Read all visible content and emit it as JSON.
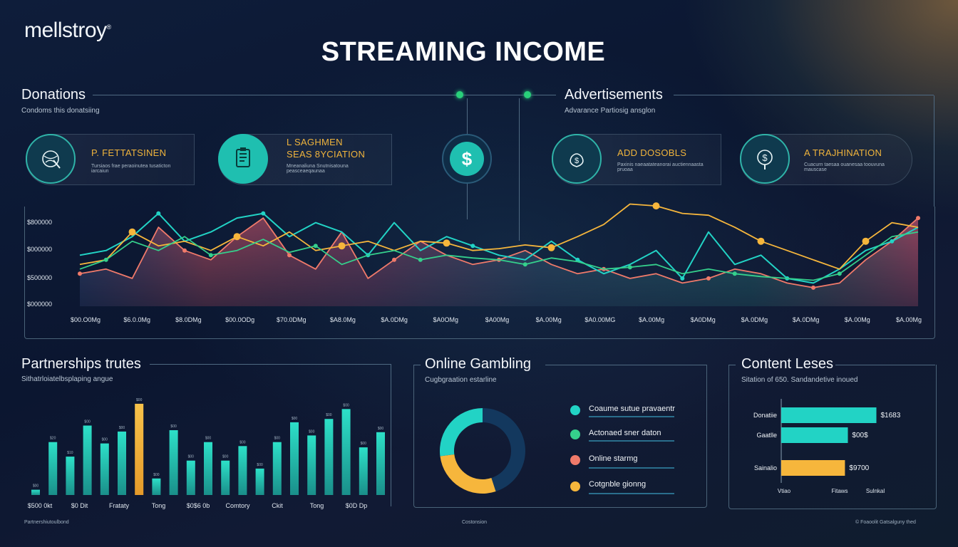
{
  "brand": "mellstroy",
  "brand_mark": "®",
  "title": "STREAMING INCOME",
  "donations": {
    "title": "Donations",
    "subtitle": "Condoms this donatsiing",
    "cards": [
      {
        "label": "P. FETTATSINEN",
        "desc": "Tursiaos frae peraoinutea tusaticton iarcaiun",
        "icon": "globe-pen-icon"
      },
      {
        "label": "L SAGHMEN\nSEAS 8YCIATION",
        "desc": "Mneanaliuna Snutnisatouna peasceaeqaunaa",
        "icon": "document-icon"
      }
    ],
    "center_icon": "dollar-icon"
  },
  "advertisements": {
    "title": "Advertisements",
    "subtitle": "Advarance Partiosig ansglon",
    "cards": [
      {
        "label": "ADD DOSOBLS",
        "desc": "Paxinis naeaatateanorai auctiennaasta pruoaa",
        "icon": "dollar-bag-icon"
      },
      {
        "label": "A TRAJHINATION",
        "desc": "Cuacurn taesaa ouanesaa toouvuna mauscase",
        "icon": "dollar-pin-icon"
      }
    ]
  },
  "partnerships": {
    "title": "Partnerships trutes",
    "subtitle": "Sithatrloiatelbsplaping angue",
    "footer": "Partnershiutoulbond"
  },
  "gambling": {
    "title": "Online Gambling",
    "subtitle": "Cugbgraation estarline",
    "footer": "Costonsion",
    "legend": [
      {
        "label": "Coaume sutue pravaentr",
        "color": "#22d3c5"
      },
      {
        "label": "Actonaed sner daton",
        "color": "#35d08c"
      },
      {
        "label": "Online starmg",
        "color": "#f07a6a"
      },
      {
        "label": "Cotgnble gionng",
        "color": "#f6b63c"
      }
    ]
  },
  "content": {
    "title": "Content Leses",
    "subtitle": "Sitation of 650. Sandandetive inoued",
    "footer": "© Foaoolit Gatsalguny thed"
  },
  "colors": {
    "teal": "#22d3c5",
    "gold": "#f6b63c",
    "coral": "#f07a6a",
    "navy": "#13385e"
  },
  "chart_data": [
    {
      "type": "line",
      "ylabels": [
        "$800000",
        "$000000",
        "$500000",
        "$000000"
      ],
      "xlabels": [
        "$00.O0Mg",
        "$6.0.0Mg",
        "$8.0DMg",
        "$00.0ODg",
        "$70.0DMg",
        "$A8.0Mg",
        "$A.0DMg",
        "$A0OMg",
        "$A00Mg",
        "$A.00Mg",
        "$A0.00MG",
        "$A.00Mg",
        "$A0DMg",
        "$A.0DMg",
        "$A.0DMg",
        "$A.00Mg",
        "$A.00Mg"
      ],
      "series": [
        {
          "color": "#f07a6a",
          "values": [
            0.35,
            0.4,
            0.3,
            0.85,
            0.6,
            0.5,
            0.75,
            0.95,
            0.55,
            0.4,
            0.8,
            0.3,
            0.5,
            0.7,
            0.55,
            0.45,
            0.5,
            0.6,
            0.45,
            0.35,
            0.4,
            0.3,
            0.35,
            0.25,
            0.3,
            0.4,
            0.35,
            0.25,
            0.2,
            0.25,
            0.5,
            0.7,
            0.95
          ]
        },
        {
          "color": "#22d3c5",
          "values": [
            0.55,
            0.6,
            0.75,
            1.0,
            0.7,
            0.8,
            0.95,
            1.0,
            0.75,
            0.9,
            0.8,
            0.55,
            0.9,
            0.6,
            0.75,
            0.65,
            0.55,
            0.5,
            0.7,
            0.5,
            0.35,
            0.45,
            0.6,
            0.3,
            0.8,
            0.45,
            0.55,
            0.3,
            0.25,
            0.4,
            0.6,
            0.7,
            0.85
          ]
        },
        {
          "color": "#f6b63c",
          "values": [
            0.45,
            0.5,
            0.8,
            0.65,
            0.7,
            0.6,
            0.75,
            0.65,
            0.8,
            0.6,
            0.65,
            0.7,
            0.6,
            0.7,
            0.68,
            0.6,
            0.62,
            0.66,
            0.63,
            0.75,
            0.88,
            1.1,
            1.08,
            1.0,
            0.98,
            0.85,
            0.7,
            0.6,
            0.5,
            0.4,
            0.7,
            0.9,
            0.85
          ]
        },
        {
          "color": "#35d08c",
          "values": [
            0.4,
            0.5,
            0.7,
            0.6,
            0.75,
            0.55,
            0.6,
            0.72,
            0.58,
            0.65,
            0.45,
            0.55,
            0.6,
            0.5,
            0.55,
            0.52,
            0.5,
            0.45,
            0.52,
            0.48,
            0.4,
            0.42,
            0.45,
            0.35,
            0.4,
            0.35,
            0.32,
            0.3,
            0.28,
            0.35,
            0.55,
            0.75,
            0.8
          ]
        }
      ]
    },
    {
      "type": "bar",
      "xlabels": [
        "$500 0kt",
        "$0 Dit",
        "Frataty",
        "Tong",
        "$0$6 0b",
        "Comtory",
        "Ckit",
        "Tong",
        "$0D Dp"
      ],
      "values": [
        8,
        80,
        58,
        105,
        78,
        96,
        138,
        25,
        98,
        52,
        80,
        52,
        74,
        40,
        80,
        110,
        90,
        115,
        130,
        72,
        95,
        50
      ],
      "highlight_index": 6,
      "ylim": [
        0,
        140
      ],
      "value_labels": [
        "$00",
        "$20",
        "$10",
        "$00",
        "$00",
        "$00",
        "$00",
        "$00",
        "$00",
        "$00",
        "$00",
        "$00",
        "$00",
        "$00",
        "$00",
        "$00",
        "$00",
        "$00",
        "$00",
        "$00",
        "$00",
        "$00"
      ]
    },
    {
      "type": "pie",
      "slices": [
        {
          "color": "#13385e",
          "value": 45
        },
        {
          "color": "#f6b63c",
          "value": 28
        },
        {
          "color": "#22d3c5",
          "value": 27
        }
      ]
    },
    {
      "type": "bar",
      "orientation": "horizontal",
      "categories": [
        "Donatiie",
        "Gaatlle",
        "Sainalio"
      ],
      "values": [
        100,
        70,
        67
      ],
      "value_labels": [
        "$1683",
        "$00$",
        "$9700"
      ],
      "colors": [
        "#22d3c5",
        "#22d3c5",
        "#f6b63c"
      ],
      "xlabels": [
        "Vtiao",
        "Fitaws",
        "Sulnkal"
      ],
      "xlim": [
        0,
        110
      ]
    }
  ]
}
